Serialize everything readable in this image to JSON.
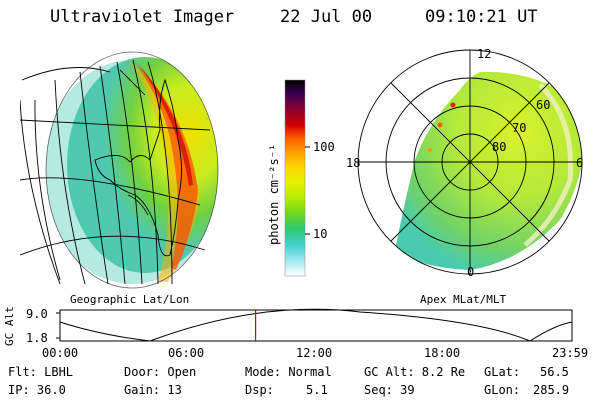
{
  "header": {
    "instrument": "Ultraviolet Imager",
    "date": "22 Jul 00",
    "time": "09:10:21 UT"
  },
  "left_panel": {
    "caption": "Geographic Lat/Lon"
  },
  "colorbar": {
    "unit_label": "photon cm⁻²s⁻¹",
    "ticks": [
      "100",
      "10"
    ],
    "colors": [
      "#000000",
      "#3a0050",
      "#8a0030",
      "#d00000",
      "#ff6000",
      "#ffa000",
      "#ffd800",
      "#e8f000",
      "#b8ec00",
      "#70d820",
      "#30c870",
      "#40d0d0",
      "#a0e8f0",
      "#ffffff"
    ]
  },
  "right_panel": {
    "caption": "Apex MLat/MLT",
    "mlt_labels": [
      "12",
      "18",
      "6",
      "0"
    ],
    "mlat_labels": [
      "60",
      "70",
      "80"
    ]
  },
  "altitude_plot": {
    "ylabel": "GC Alt",
    "yticks": [
      "9.0",
      "1.8"
    ],
    "xticks": [
      "00:00",
      "06:00",
      "12:00",
      "18:00",
      "23:59"
    ],
    "marker_color": "#d00000",
    "current_time_fraction": 0.382
  },
  "info": {
    "flt": "Flt: LBHL",
    "ip": "IP: 36.0",
    "door": "Door: Open",
    "gain": "Gain: 13",
    "mode": "Mode: Normal",
    "dsp_label": "Dsp:",
    "dsp_value": "5.1",
    "gc_alt": "GC Alt: 8.2 Re",
    "seq": "Seq: 39",
    "glat_label": "GLat:",
    "glat_value": "56.5",
    "glon_label": "GLon:",
    "glon_value": "285.9"
  }
}
